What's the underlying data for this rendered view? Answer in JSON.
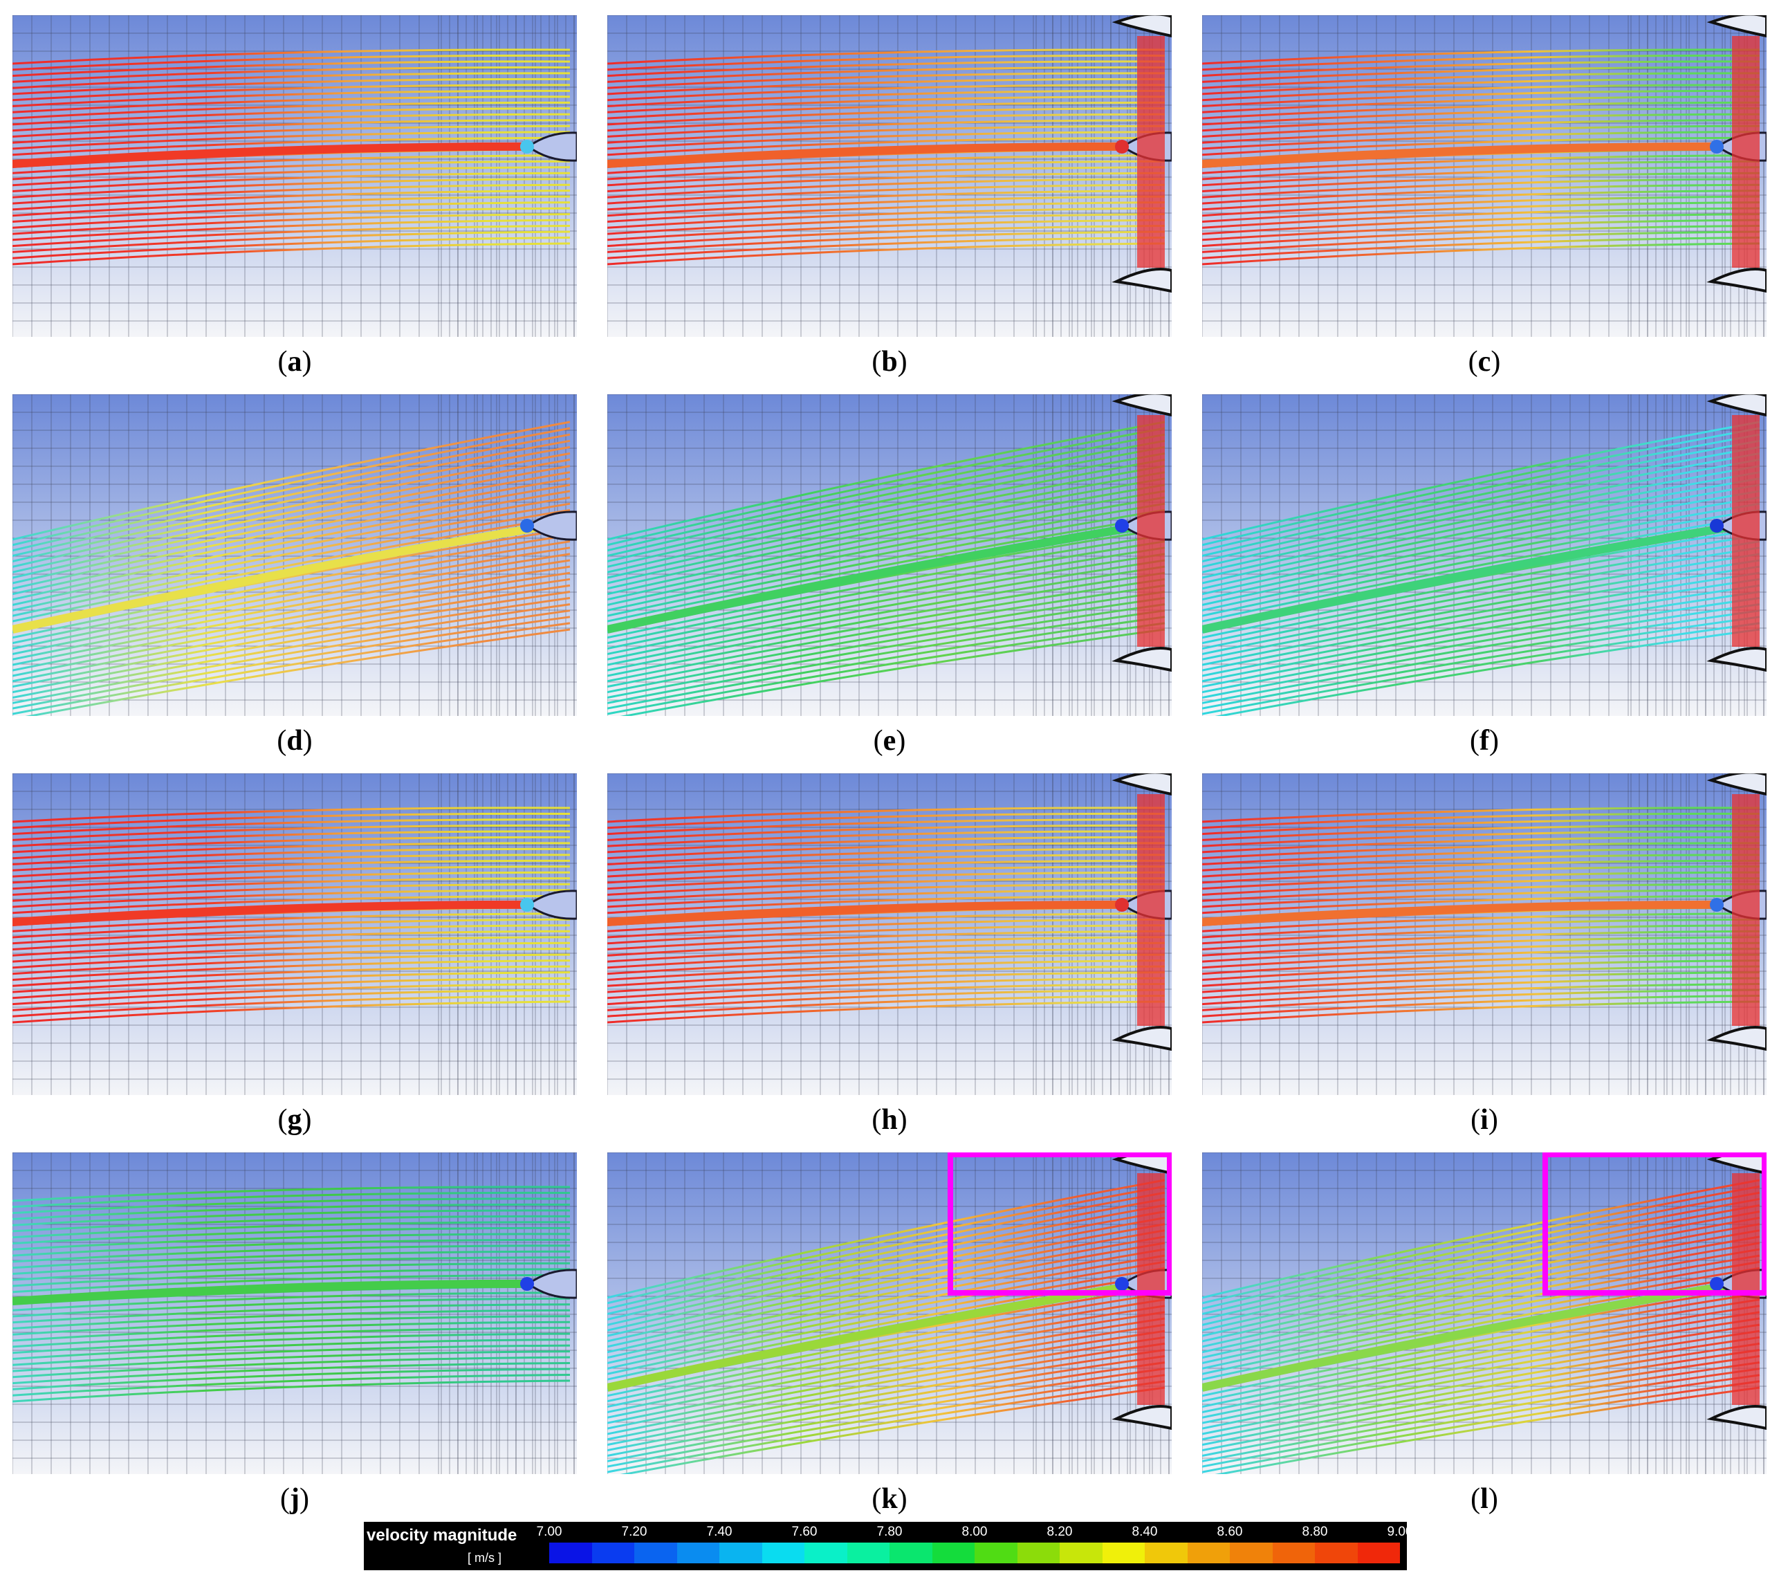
{
  "panels": [
    {
      "id": "a",
      "label": "a",
      "palette": [
        "#ee2a2a",
        "#f03a26",
        "#f2a23a",
        "#e6e03a",
        "#48c6ee"
      ],
      "hasBlade": false,
      "highlight": false
    },
    {
      "id": "b",
      "label": "b",
      "palette": [
        "#ee2a2a",
        "#f0602a",
        "#f2a23a",
        "#e6d84a",
        "#e03030"
      ],
      "hasBlade": true,
      "highlight": false
    },
    {
      "id": "c",
      "label": "c",
      "palette": [
        "#ee2a2a",
        "#f07030",
        "#f2c23a",
        "#5ed85a",
        "#3070e6"
      ],
      "hasBlade": true,
      "highlight": false
    },
    {
      "id": "d",
      "label": "d",
      "palette": [
        "#3ad6d6",
        "#e8e04a",
        "#f2b24a",
        "#ef8a40",
        "#2a6ae6"
      ],
      "hasBlade": false,
      "highlight": false
    },
    {
      "id": "e",
      "label": "e",
      "palette": [
        "#2ed6c6",
        "#40d060",
        "#62d24e",
        "#58cc5a",
        "#2040e6"
      ],
      "hasBlade": true,
      "highlight": false
    },
    {
      "id": "f",
      "label": "f",
      "palette": [
        "#2ed6e0",
        "#3ed27a",
        "#4ad26a",
        "#40dce6",
        "#1838d6"
      ],
      "hasBlade": true,
      "highlight": false
    },
    {
      "id": "g",
      "label": "g",
      "palette": [
        "#ee2a2a",
        "#f03a26",
        "#f2a23a",
        "#e6e03a",
        "#48c6ee"
      ],
      "hasBlade": false,
      "highlight": false
    },
    {
      "id": "h",
      "label": "h",
      "palette": [
        "#ee2a2a",
        "#f0602a",
        "#f2a23a",
        "#e6d84a",
        "#e03030"
      ],
      "hasBlade": true,
      "highlight": false
    },
    {
      "id": "i",
      "label": "i",
      "palette": [
        "#ee2a2a",
        "#f07030",
        "#f2c23a",
        "#5ed85a",
        "#3070e6"
      ],
      "hasBlade": true,
      "highlight": false
    },
    {
      "id": "j",
      "label": "j",
      "palette": [
        "#40d6c0",
        "#44cc4a",
        "#3ec84a",
        "#30c890",
        "#2040e6"
      ],
      "hasBlade": false,
      "highlight": false
    },
    {
      "id": "k",
      "label": "k",
      "palette": [
        "#3ad6e6",
        "#9ad83a",
        "#f2c23a",
        "#ef5a30",
        "#2040e6"
      ],
      "hasBlade": true,
      "highlight": true
    },
    {
      "id": "l",
      "label": "l",
      "palette": [
        "#3ad6e6",
        "#8ad84a",
        "#e2d23a",
        "#ef4a30",
        "#2040e6"
      ],
      "hasBlade": true,
      "highlight": true
    }
  ],
  "colorbar": {
    "title": "velocity magnitude",
    "unit": "[ m/s ]",
    "ticks": [
      "7.00",
      "7.20",
      "7.40",
      "7.60",
      "7.80",
      "8.00",
      "8.20",
      "8.40",
      "8.60",
      "8.80",
      "9.00"
    ],
    "colors": [
      "#0a14e6",
      "#0a3cf0",
      "#0a64f0",
      "#0a8cf0",
      "#0ab4f0",
      "#0adcf0",
      "#0af0c8",
      "#0af0a0",
      "#0ae66e",
      "#14dc3c",
      "#50dc14",
      "#8cdc0a",
      "#c8e60a",
      "#f0f00a",
      "#f0c80a",
      "#f0a00a",
      "#f0820a",
      "#f0640a",
      "#f0460a",
      "#f0280a"
    ]
  },
  "highlight_color": "#ff00ff"
}
